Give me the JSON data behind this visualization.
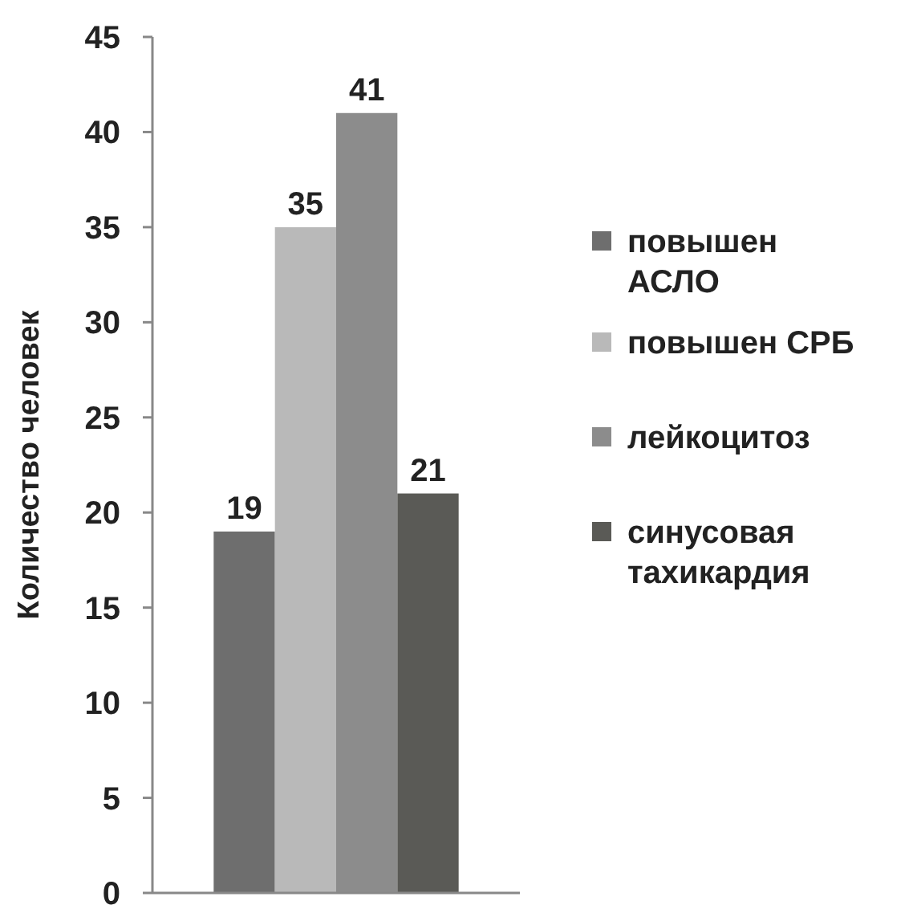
{
  "chart_data": {
    "type": "bar",
    "ylabel": "Количество человек",
    "categories": [
      null
    ],
    "series": [
      {
        "name": "повышен АСЛО",
        "color": "#6e6e6e",
        "values": [
          19
        ]
      },
      {
        "name": "повышен СРБ",
        "color": "#b9b9b9",
        "values": [
          35
        ]
      },
      {
        "name": "лейкоцитоз",
        "color": "#8c8c8c",
        "values": [
          41
        ]
      },
      {
        "name": "синусовая тахикардия",
        "color": "#5a5a56",
        "values": [
          21
        ]
      }
    ],
    "ylim": [
      0,
      45
    ],
    "yticks": [
      0,
      5,
      10,
      15,
      20,
      25,
      30,
      35,
      40,
      45
    ],
    "data_labels": true,
    "legend": "right",
    "grid": false
  }
}
